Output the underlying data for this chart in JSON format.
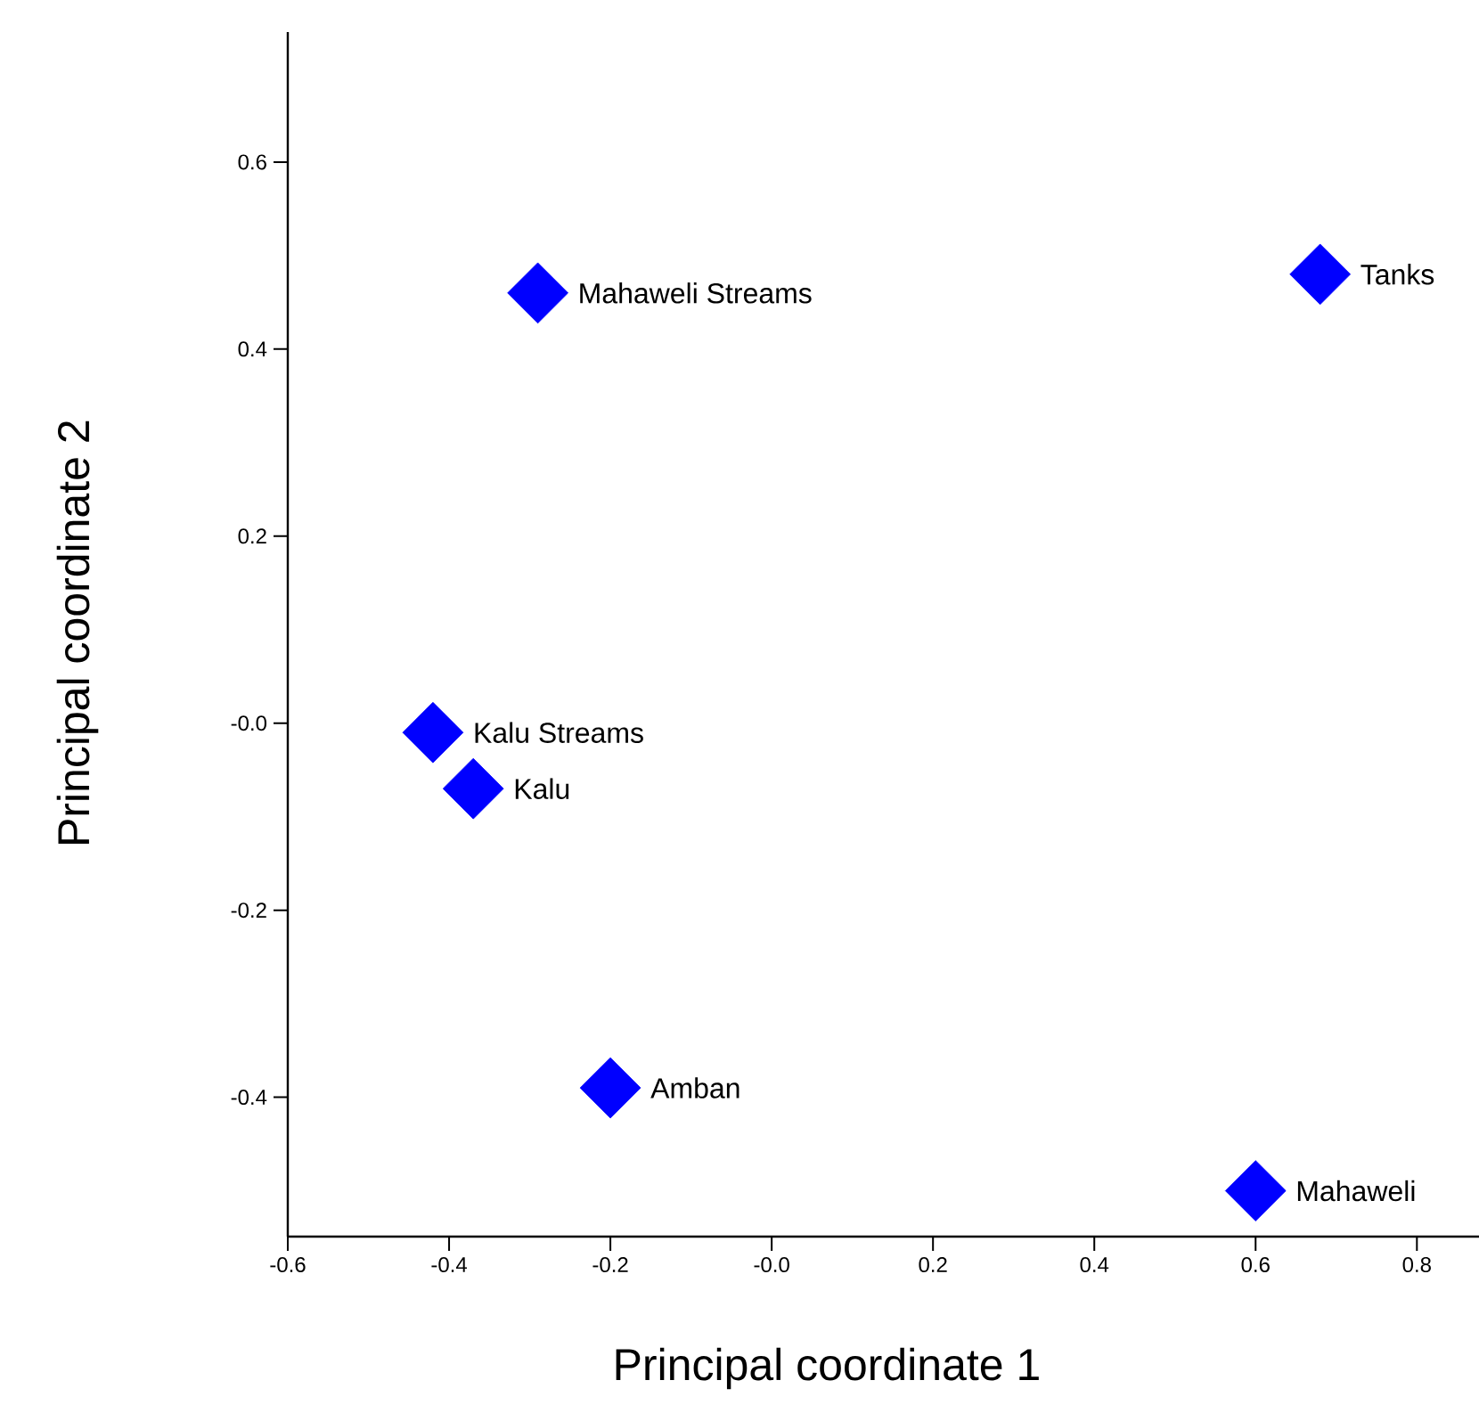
{
  "chart_data": {
    "type": "scatter",
    "xlabel": "Principal coordinate 1",
    "ylabel": "Principal coordinate 2",
    "x": [
      -0.29,
      0.68,
      -0.42,
      -0.37,
      -0.2,
      0.6
    ],
    "series": [
      {
        "color": "#0000ff",
        "values": [
          0.46,
          0.48,
          -0.01,
          -0.07,
          -0.39,
          -0.5
        ]
      }
    ],
    "annotations": [
      {
        "text": "Mahaweli Streams",
        "x": -0.29,
        "y": 0.46
      },
      {
        "text": "Tanks",
        "x": 0.68,
        "y": 0.48
      },
      {
        "text": "Kalu Streams",
        "x": -0.42,
        "y": -0.01
      },
      {
        "text": "Kalu",
        "x": -0.37,
        "y": -0.07
      },
      {
        "text": "Amban",
        "x": -0.2,
        "y": -0.39
      },
      {
        "text": "Mahaweli",
        "x": 0.6,
        "y": -0.5
      }
    ],
    "xlim": [
      -0.6,
      0.877
    ],
    "ylim": [
      -0.549,
      0.739
    ],
    "xticks": [
      -0.6,
      -0.4,
      -0.2,
      {
        "value": 0,
        "label": "-0.0"
      },
      0.2,
      0.4,
      0.6,
      0.8
    ],
    "yticks": [
      -0.4,
      -0.2,
      {
        "value": 0,
        "label": "-0.0"
      },
      0.2,
      0.4,
      0.6
    ],
    "marker": "diamond"
  }
}
